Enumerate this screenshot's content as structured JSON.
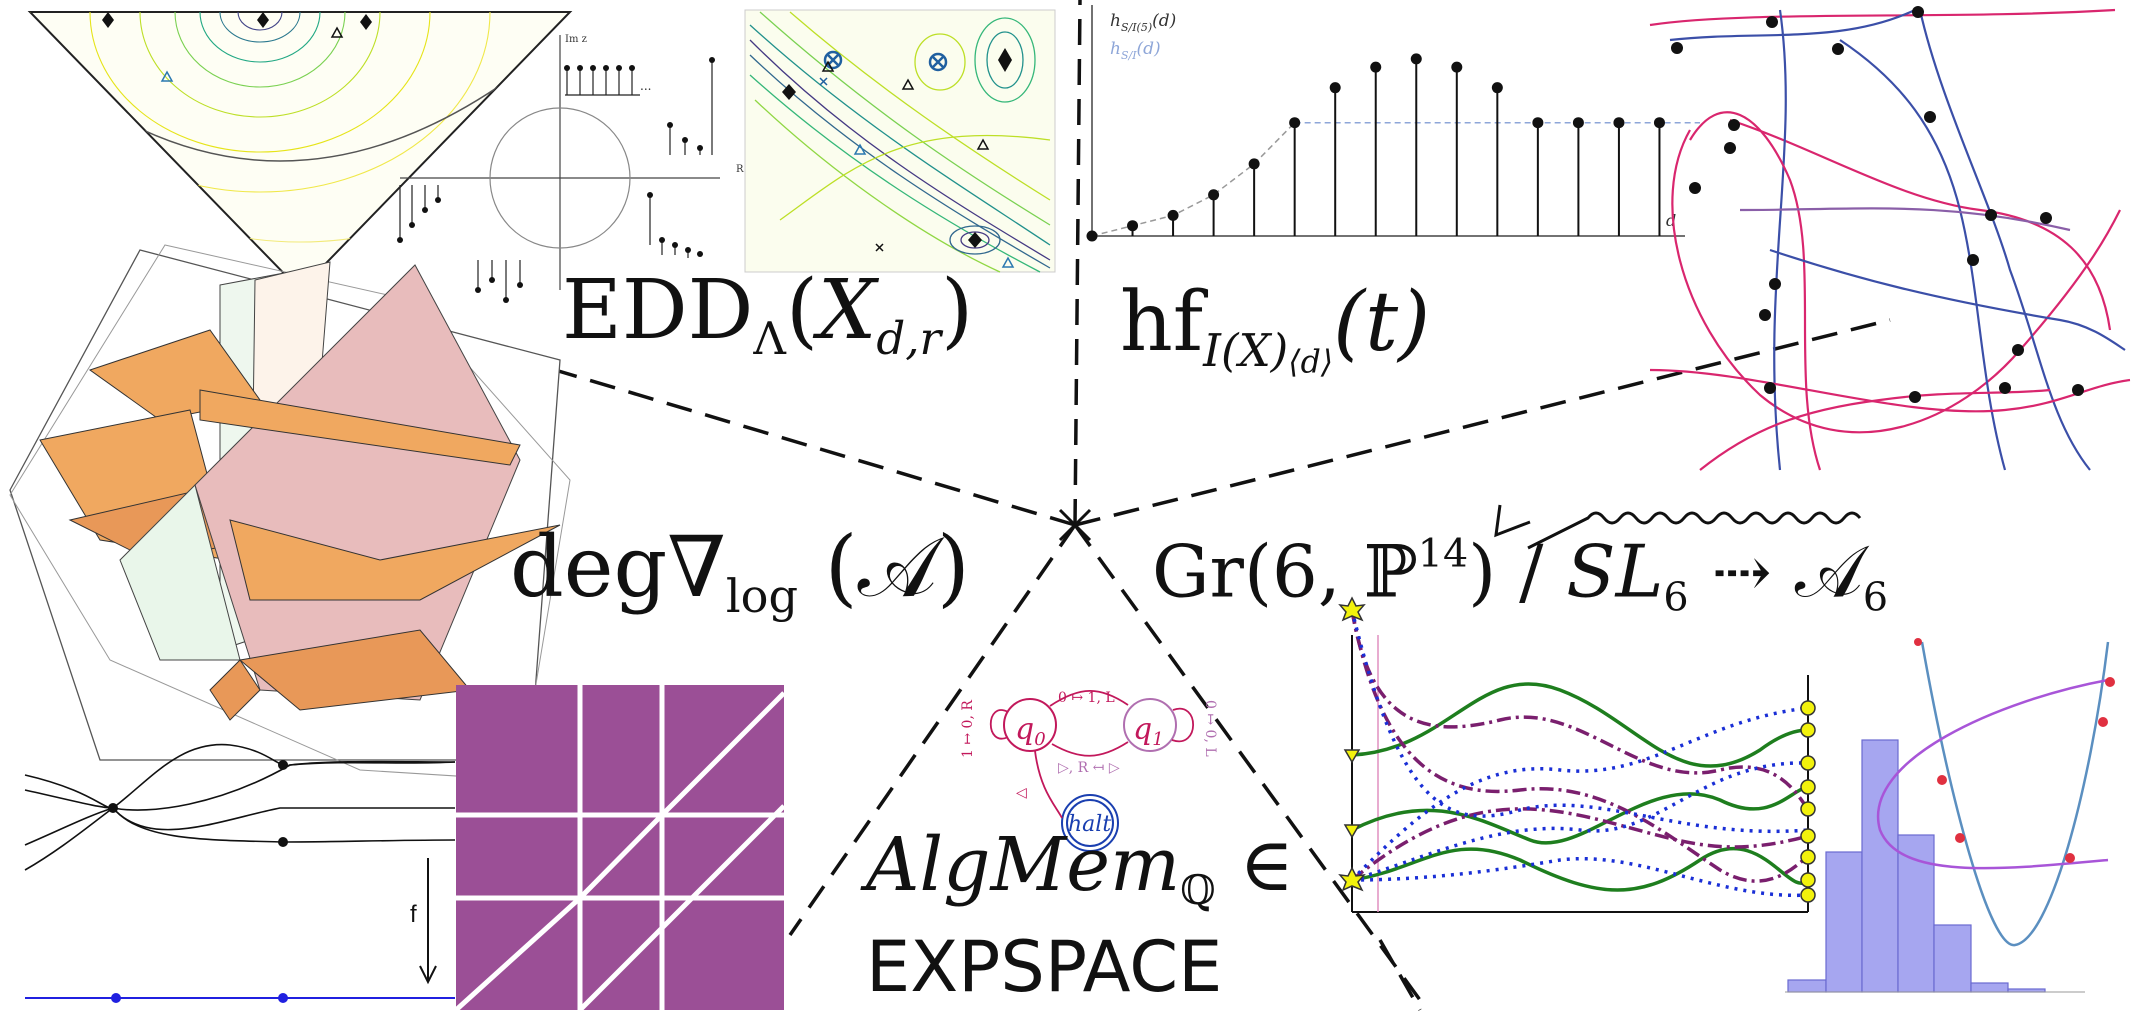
{
  "formulas": {
    "edd": {
      "main": "EDD",
      "sub": "Λ",
      "open": "(",
      "var": "X",
      "sub2": "d,r",
      "close": ")"
    },
    "hf": {
      "main": "hf",
      "sub": "I(X)",
      "subsub": "⟨d⟩",
      "arg": "(t)"
    },
    "deg": {
      "main": "deg∇",
      "sub": "log",
      "arg": "(𝒜)"
    },
    "gr": {
      "main": "Gr",
      "open": "(6,",
      "space": "ℙ",
      "exp": "14",
      "close": ")",
      "quot": "/",
      "group": "SL",
      "group_sub": "6",
      "arrow": "⇢",
      "target": "𝒜",
      "target_sub": "6"
    },
    "algmem": {
      "main": "AlgMem",
      "sub": "ℚ",
      "rel": "∈",
      "class": "EXPSPACE"
    }
  },
  "hilbert_plot": {
    "legend_top": "h",
    "legend_top_sub": "S/I(5)",
    "legend_top_arg": "(d)",
    "legend_bottom": "h",
    "legend_bottom_sub": "S/I",
    "legend_bottom_arg": "(d)",
    "xlabel": "d"
  },
  "complex_plane": {
    "im_label": "Im z",
    "re_label": "R",
    "dots": "..."
  },
  "turing_machine": {
    "states": [
      "q",
      "q",
      "halt"
    ],
    "state_subs": [
      "0",
      "1",
      ""
    ],
    "edges": [
      "0 ↦ 1, L",
      "1 ↦ 0, R",
      "0 ↦ 0, L",
      "▷, R ↤ ▷",
      "◁"
    ]
  },
  "map_label": "f",
  "colors": {
    "purple_tile": "#9b4f96",
    "magenta": "#d9266e",
    "blue_curve": "#3b4fa8",
    "green": "#1e7e1e",
    "blue_dotted": "#1a2fd6",
    "purple_dashdot": "#7a1f6e",
    "histogram": "#a6a6f0",
    "orange_plane": "#f0a860",
    "pink_plane": "#e8b8b8"
  },
  "chart_data": {
    "type": "bar",
    "title": "",
    "xlabel": "d",
    "ylabel": "",
    "values": [
      0,
      0.05,
      0.1,
      0.2,
      0.35,
      0.55,
      0.72,
      0.82,
      0.86,
      0.82,
      0.72,
      0.55,
      0.55,
      0.55,
      0.55
    ],
    "plateau": 0.55,
    "ylim": [
      0,
      1
    ]
  }
}
